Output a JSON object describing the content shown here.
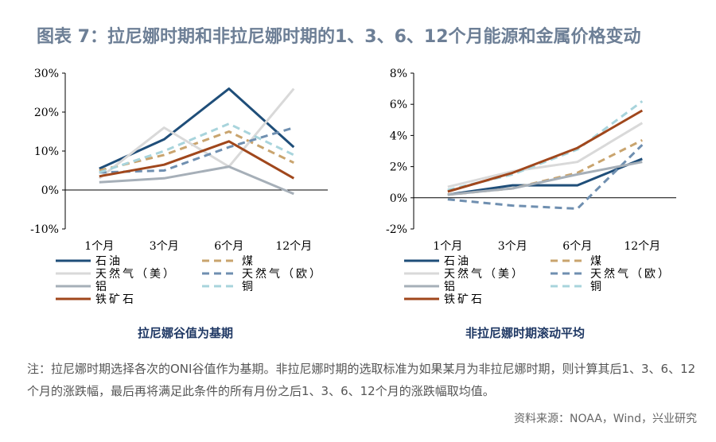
{
  "title": "图表 7：拉尼娜时期和非拉尼娜时期的1、3、6、12个月能源和金属价格变动",
  "chart_data": [
    {
      "type": "line",
      "caption": "拉尼娜谷值为基期",
      "categories": [
        "1个月",
        "3个月",
        "6个月",
        "12个月"
      ],
      "y_ticks": [
        "30%",
        "20%",
        "10%",
        "0%",
        "-10%"
      ],
      "ylim": [
        -10,
        30
      ],
      "series": [
        {
          "name": "石油",
          "color": "#1f4e79",
          "dash": "none",
          "values": [
            5.5,
            13,
            26,
            11
          ]
        },
        {
          "name": "煤",
          "color": "#c9a46e",
          "dash": "dashed",
          "values": [
            5,
            9,
            15,
            7
          ]
        },
        {
          "name": "天然气（美）",
          "color": "#d9d9d9",
          "dash": "none",
          "values": [
            3,
            16,
            6,
            26
          ]
        },
        {
          "name": "天然气（欧）",
          "color": "#6f8fb0",
          "dash": "dashed",
          "values": [
            4.5,
            5,
            11,
            16
          ]
        },
        {
          "name": "铝",
          "color": "#a6afb8",
          "dash": "none",
          "values": [
            2,
            3,
            6,
            -1
          ]
        },
        {
          "name": "铜",
          "color": "#a8d4dc",
          "dash": "dashed",
          "values": [
            4.5,
            10,
            17,
            9
          ]
        },
        {
          "name": "铁矿石",
          "color": "#a0471c",
          "dash": "none",
          "values": [
            3.5,
            6.5,
            12.5,
            3
          ]
        }
      ]
    },
    {
      "type": "line",
      "caption": "非拉尼娜时期滚动平均",
      "categories": [
        "1个月",
        "3个月",
        "6个月",
        "12个月"
      ],
      "y_ticks": [
        "8%",
        "6%",
        "4%",
        "2%",
        "0%",
        "-2%"
      ],
      "ylim": [
        -2,
        8
      ],
      "series": [
        {
          "name": "石油",
          "color": "#1f4e79",
          "dash": "none",
          "values": [
            0.2,
            0.8,
            0.8,
            2.5
          ]
        },
        {
          "name": "煤",
          "color": "#c9a46e",
          "dash": "dashed",
          "values": [
            0.2,
            0.6,
            1.6,
            3.7
          ]
        },
        {
          "name": "天然气（美）",
          "color": "#d9d9d9",
          "dash": "none",
          "values": [
            0.7,
            1.7,
            2.3,
            4.8
          ]
        },
        {
          "name": "天然气（欧）",
          "color": "#6f8fb0",
          "dash": "dashed",
          "values": [
            -0.1,
            -0.5,
            -0.7,
            3.4
          ]
        },
        {
          "name": "铝",
          "color": "#a6afb8",
          "dash": "none",
          "values": [
            0.2,
            0.6,
            1.5,
            2.3
          ]
        },
        {
          "name": "铜",
          "color": "#a8d4dc",
          "dash": "dashed",
          "values": [
            0.5,
            1.5,
            3.1,
            6.2
          ]
        },
        {
          "name": "铁矿石",
          "color": "#a0471c",
          "dash": "none",
          "values": [
            0.4,
            1.6,
            3.2,
            5.6
          ]
        }
      ]
    }
  ],
  "note": "注：拉尼娜时期选择各次的ONI谷值作为基期。非拉尼娜时期的选取标准为如果某月为非拉尼娜时期，则计算其后1、3、6、12个月的涨跌幅，最后再将满足此条件的所有月份之后1、3、6、12个月的涨跌幅取均值。",
  "source": "资料来源：NOAA，Wind，兴业研究"
}
